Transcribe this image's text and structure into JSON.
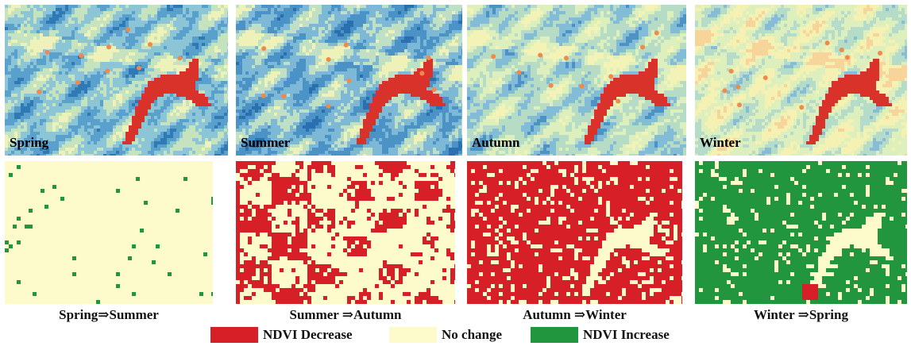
{
  "seasonal_maps": [
    {
      "label": "Spring",
      "palette": [
        "#2f79b5",
        "#5aa0cc",
        "#8cc5d6",
        "#c6e3c0",
        "#eef2b8"
      ]
    },
    {
      "label": "Summer",
      "palette": [
        "#2a6fb0",
        "#4b93c6",
        "#7db8d6",
        "#bfe0c4",
        "#eef2b8"
      ]
    },
    {
      "label": "Autumn",
      "palette": [
        "#4e92c4",
        "#82bcd6",
        "#b6dcc6",
        "#dcefbc",
        "#f3f3b8"
      ]
    },
    {
      "label": "Winter",
      "palette": [
        "#86bcd8",
        "#b5dcc9",
        "#dcefbd",
        "#f4f1b2",
        "#f6d49a"
      ]
    }
  ],
  "change_maps": [
    {
      "caption": "Spring⇒Summer",
      "dominant": "no-change",
      "decrease_fraction": 0.0,
      "increase_fraction": 0.02
    },
    {
      "caption": "Summer ⇒Autumn",
      "dominant": "no-change",
      "decrease_fraction": 0.32,
      "increase_fraction": 0.0
    },
    {
      "caption": "Autumn ⇒Winter",
      "dominant": "decrease",
      "decrease_fraction": 0.78,
      "increase_fraction": 0.0
    },
    {
      "caption": "Winter ⇒Spring",
      "dominant": "increase",
      "decrease_fraction": 0.01,
      "increase_fraction": 0.8
    }
  ],
  "reservoir_color": "#d9322a",
  "legend": [
    {
      "label": "NDVI Decrease",
      "color": "#d61f26"
    },
    {
      "label": "No change",
      "color": "#fdfbcb"
    },
    {
      "label": "NDVI Increase",
      "color": "#21963f"
    }
  ]
}
